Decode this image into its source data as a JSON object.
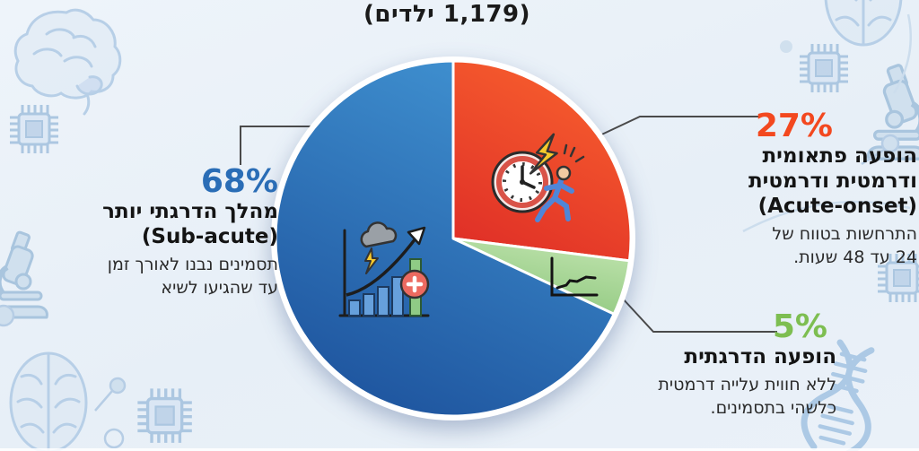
{
  "title": "(1,179 ילדים)",
  "colors": {
    "background": "#eaf1f8",
    "accent_blue": "#2a6db6",
    "accent_red": "#f3481f",
    "accent_green": "#7dbe51",
    "leader_line": "#4a4a4a",
    "text_dark": "#1b1b1b"
  },
  "chart_data": {
    "type": "pie",
    "title": "(1,179 ילדים)",
    "population_label": "1,179 ילדים",
    "start_angle_deg": 0,
    "clockwise": true,
    "legend_position": "callouts",
    "slices": [
      {
        "name": "acute-onset",
        "label": "הופעה פתאומית ודרמטית ודרמטית (Acute-onset)",
        "value": 27,
        "colors": [
          "#f8602e",
          "#e03027"
        ]
      },
      {
        "name": "gradual-onset",
        "label": "הופעה הדרגתית",
        "value": 5,
        "colors": [
          "#bfe3ad",
          "#8cc67c"
        ]
      },
      {
        "name": "sub-acute",
        "label": "מהלך הדרגתי יותר (Sub-acute)",
        "value": 68,
        "colors": [
          "#4193d2",
          "#1e549e"
        ]
      }
    ]
  },
  "callouts": {
    "sub_acute": {
      "pct": "68%",
      "title": "מהלך הדרגתי יותר",
      "subtitle": "(Sub-acute)",
      "body1": "תסמינים נבנו לאורך זמן",
      "body2": "עד שהגיעו לשיא"
    },
    "acute": {
      "pct": "27%",
      "title1": "הופעה פתאומית",
      "title2": "ודרמטית ודרמטית",
      "subtitle": "(Acute-onset)",
      "body1": "התרחשות בטווח של",
      "body2": "24 עד 48 שעות."
    },
    "gradual": {
      "pct": "5%",
      "title": "הופעה הדרגתית",
      "body1": "ללא חווית עלייה דרמטית",
      "body2": "כלשהי בתסמינים."
    }
  },
  "icons": {
    "slice_icons": [
      "alarm-clock-lightning-runner-icon",
      "storm-cloud-growth-chart-icon",
      "line-chart-icon"
    ],
    "decorative": [
      "brain-side-icon",
      "brain-top-icon",
      "microchip-icon",
      "microscope-icon",
      "dna-helix-icon",
      "molecule-icon"
    ]
  }
}
